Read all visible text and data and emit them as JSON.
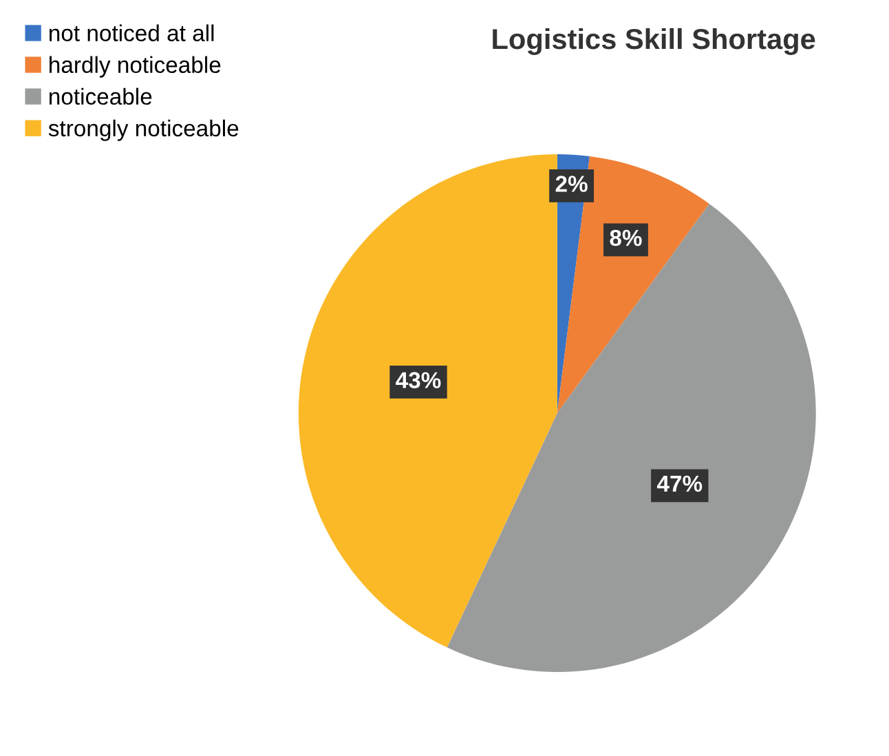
{
  "chart_data": {
    "type": "pie",
    "title": "Logistics Skill Shortage",
    "categories": [
      "not noticed at all",
      "hardly noticeable",
      "noticeable",
      "strongly noticeable"
    ],
    "values": [
      2,
      8,
      47,
      43
    ],
    "colors": [
      "#3a74c4",
      "#ef8036",
      "#9a9c9c",
      "#fbb928"
    ],
    "value_labels": [
      "2%",
      "8%",
      "47%",
      "43%"
    ],
    "legend": "top left"
  }
}
